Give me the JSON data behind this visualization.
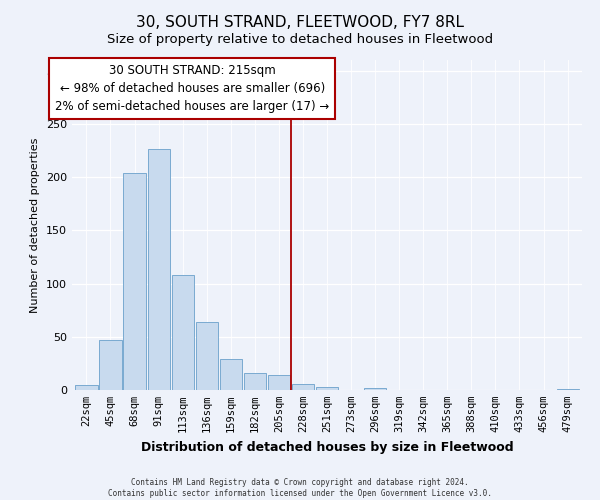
{
  "title": "30, SOUTH STRAND, FLEETWOOD, FY7 8RL",
  "subtitle": "Size of property relative to detached houses in Fleetwood",
  "xlabel": "Distribution of detached houses by size in Fleetwood",
  "ylabel": "Number of detached properties",
  "bar_labels": [
    "22sqm",
    "45sqm",
    "68sqm",
    "91sqm",
    "113sqm",
    "136sqm",
    "159sqm",
    "182sqm",
    "205sqm",
    "228sqm",
    "251sqm",
    "273sqm",
    "296sqm",
    "319sqm",
    "342sqm",
    "365sqm",
    "388sqm",
    "410sqm",
    "433sqm",
    "456sqm",
    "479sqm"
  ],
  "bar_values": [
    5,
    47,
    204,
    226,
    108,
    64,
    29,
    16,
    14,
    6,
    3,
    0,
    2,
    0,
    0,
    0,
    0,
    0,
    0,
    0,
    1
  ],
  "bar_color": "#c8daee",
  "bar_edge_color": "#7aaad0",
  "property_line_x": 8.5,
  "annotation_line1": "30 SOUTH STRAND: 215sqm",
  "annotation_line2": "← 98% of detached houses are smaller (696)",
  "annotation_line3": "2% of semi-detached houses are larger (17) →",
  "ylim": [
    0,
    310
  ],
  "vline_color": "#aa0000",
  "footer1": "Contains HM Land Registry data © Crown copyright and database right 2024.",
  "footer2": "Contains public sector information licensed under the Open Government Licence v3.0.",
  "background_color": "#eef2fa",
  "plot_background": "#eef2fa",
  "grid_color": "#ffffff",
  "title_fontsize": 11,
  "subtitle_fontsize": 9.5,
  "ylabel_fontsize": 8,
  "xlabel_fontsize": 9,
  "tick_fontsize": 7.5,
  "annot_fontsize": 8.5
}
